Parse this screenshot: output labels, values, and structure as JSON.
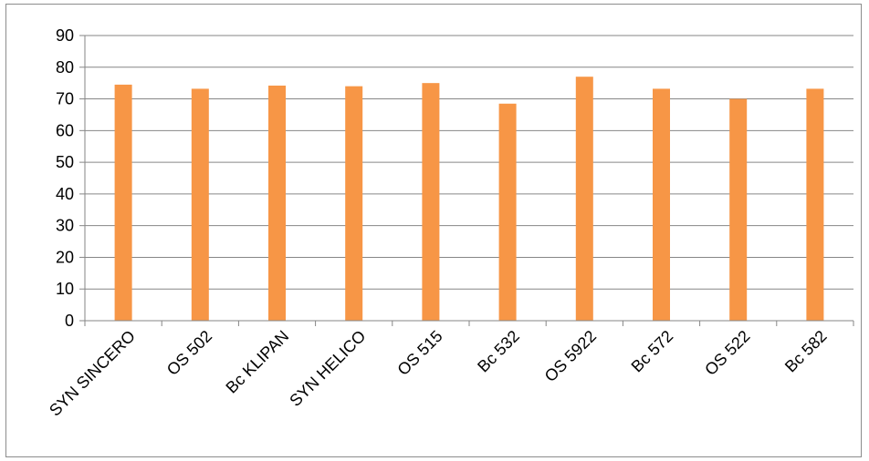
{
  "chart_data": {
    "type": "bar",
    "categories": [
      "SYN SINCERO",
      "OS 502",
      "Bc KLIPAN",
      "SYN HELICO",
      "OS 515",
      "Bc 532",
      "OS 5922",
      "Bc 572",
      "OS 522",
      "Bc 582"
    ],
    "series": [
      {
        "values": [
          74.5,
          73.2,
          74.2,
          74.0,
          75.0,
          68.5,
          77.0,
          73.2,
          70.0,
          73.2
        ]
      }
    ],
    "yticks": [
      "0",
      "10",
      "20",
      "30",
      "40",
      "50",
      "60",
      "70",
      "80",
      "90"
    ],
    "ylim": [
      0,
      90
    ],
    "grid": true,
    "legend": "none",
    "bar_color": "#F79646",
    "grid_color": "#868686",
    "title": "",
    "xlabel": "",
    "ylabel": ""
  }
}
